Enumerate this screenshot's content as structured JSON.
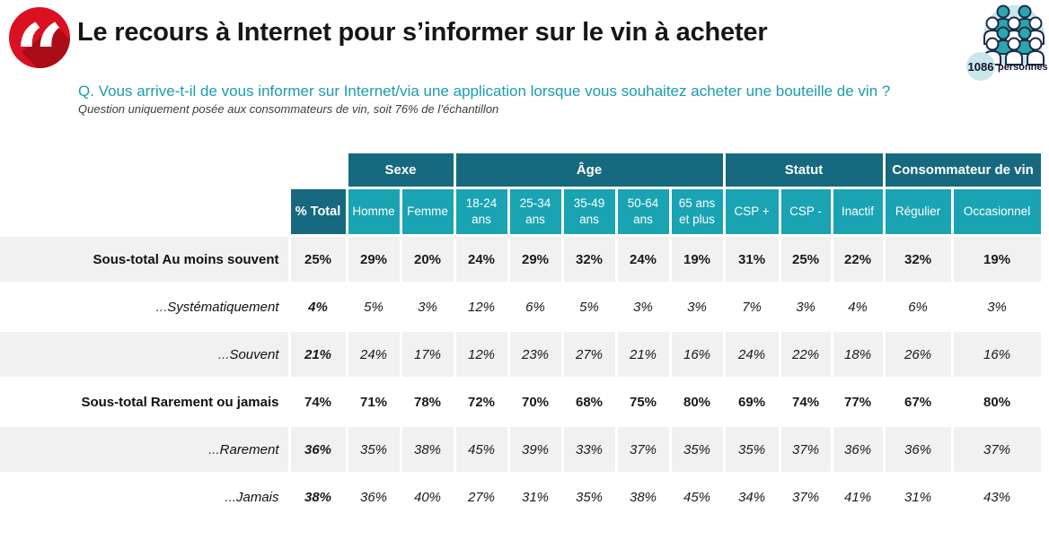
{
  "page": {
    "title": "Le recours à Internet pour s’informer sur le vin à acheter",
    "question": "Q. Vous arrive-t-il de vous informer sur Internet/via une application lorsque vous souhaitez acheter une bouteille de vin ?",
    "note": "Question uniquement posée aux consommateurs de vin, soit 76% de l’échantillon",
    "sample": {
      "count": "1086",
      "label": "personnes"
    },
    "icons": {
      "title_badge": "quote-marks-icon",
      "sample_badge": "people-group-icon"
    }
  },
  "colors": {
    "accent_red": "#d91120",
    "accent_red_shadow": "#ab0d18",
    "dark_teal": "#16697e",
    "light_teal": "#1aa3b2",
    "question_teal": "#1a9cb0",
    "icon_teal": "#2ba6b0",
    "icon_circle": "#c7e7eb",
    "icon_outline": "#1d2b47",
    "stripe_gray": "#f1f1f1",
    "text_dark": "#1a1a1a"
  },
  "chart_data": {
    "type": "table",
    "title": "Le recours à Internet pour s’informer sur le vin à acheter",
    "unit": "%",
    "column_groups": [
      {
        "label": "Sexe",
        "span": 2
      },
      {
        "label": "Âge",
        "span": 5
      },
      {
        "label": "Statut",
        "span": 3
      },
      {
        "label": "Consommateur de vin",
        "span": 2
      }
    ],
    "columns": [
      {
        "key": "total",
        "label": "% Total"
      },
      {
        "key": "homme",
        "label": "Homme"
      },
      {
        "key": "femme",
        "label": "Femme"
      },
      {
        "key": "18-24-ans",
        "label": "18-24 ans"
      },
      {
        "key": "25-34-ans",
        "label": "25-34 ans"
      },
      {
        "key": "35-49-ans",
        "label": "35-49 ans"
      },
      {
        "key": "50-64-ans",
        "label": "50-64 ans"
      },
      {
        "key": "65-ans-et-plus",
        "label": "65 ans et plus"
      },
      {
        "key": "csp-plus",
        "label": "CSP +"
      },
      {
        "key": "csp-moins",
        "label": "CSP -"
      },
      {
        "key": "inactif",
        "label": "Inactif"
      },
      {
        "key": "regulier",
        "label": "Régulier"
      },
      {
        "key": "occasionnel",
        "label": "Occasionnel"
      }
    ],
    "rows": [
      {
        "label": "Sous-total Au moins souvent",
        "prefix": "",
        "emphasis": "subtotal",
        "values": [
          25,
          29,
          20,
          24,
          29,
          32,
          24,
          19,
          31,
          25,
          22,
          32,
          19
        ]
      },
      {
        "label": "Systématiquement",
        "prefix": "...",
        "emphasis": "detail",
        "values": [
          4,
          5,
          3,
          12,
          6,
          5,
          3,
          3,
          7,
          3,
          4,
          6,
          3
        ]
      },
      {
        "label": "Souvent",
        "prefix": "...",
        "emphasis": "detail",
        "values": [
          21,
          24,
          17,
          12,
          23,
          27,
          21,
          16,
          24,
          22,
          18,
          26,
          16
        ]
      },
      {
        "label": "Sous-total Rarement ou jamais",
        "prefix": "",
        "emphasis": "subtotal",
        "values": [
          74,
          71,
          78,
          72,
          70,
          68,
          75,
          80,
          69,
          74,
          77,
          67,
          80
        ]
      },
      {
        "label": "Rarement",
        "prefix": "...",
        "emphasis": "detail",
        "values": [
          36,
          35,
          38,
          45,
          39,
          33,
          37,
          35,
          35,
          37,
          36,
          36,
          37
        ]
      },
      {
        "label": "Jamais",
        "prefix": "...",
        "emphasis": "detail",
        "values": [
          38,
          36,
          40,
          27,
          31,
          35,
          38,
          45,
          34,
          37,
          41,
          31,
          43
        ]
      }
    ]
  }
}
